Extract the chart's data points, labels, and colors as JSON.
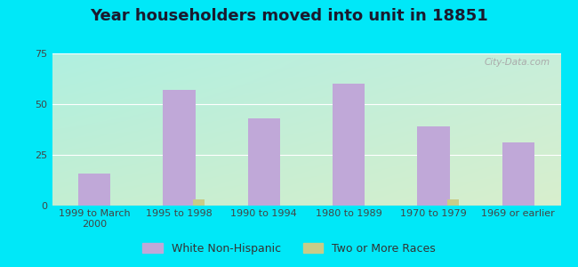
{
  "title": "Year householders moved into unit in 18851",
  "categories": [
    "1999 to March\n2000",
    "1995 to 1998",
    "1990 to 1994",
    "1980 to 1989",
    "1970 to 1979",
    "1969 or earlier"
  ],
  "white_non_hispanic": [
    16,
    57,
    43,
    60,
    39,
    31
  ],
  "two_or_more_races": [
    0,
    3,
    0,
    0,
    3,
    0
  ],
  "bar_color_white": "#c0a8d8",
  "bar_color_two": "#c8cc88",
  "ylim": [
    0,
    75
  ],
  "yticks": [
    0,
    25,
    50,
    75
  ],
  "background_outer": "#00e8f8",
  "gradient_top_left": "#b0f0e0",
  "gradient_bottom_right": "#d8f0d0",
  "grid_color": "#c8e8c8",
  "title_fontsize": 13,
  "tick_fontsize": 8,
  "legend_fontsize": 9,
  "title_color": "#1a1a2e"
}
